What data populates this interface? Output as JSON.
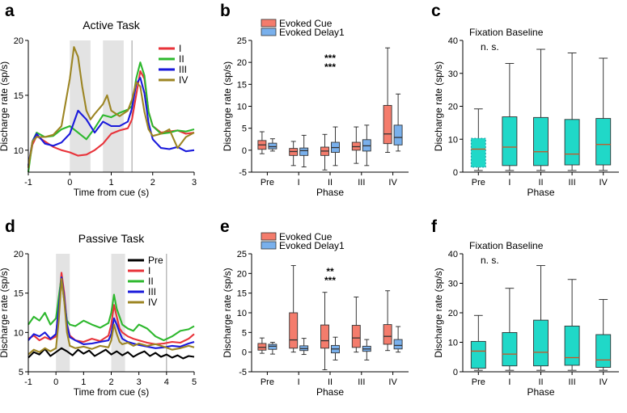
{
  "chart_data": [
    {
      "id": "a",
      "panel_label": "a",
      "type": "line",
      "title": "Active Task",
      "xlabel": "Time from cue (s)",
      "ylabel": "Discharge rate (sp/s)",
      "xlim": [
        -1,
        3
      ],
      "ylim": [
        8,
        20
      ],
      "xticks": [
        "-1",
        "0",
        "1",
        "2",
        "3"
      ],
      "yticks": [
        "10",
        "15",
        "20"
      ],
      "shaded": [
        [
          0,
          0.5
        ],
        [
          0.8,
          1.3
        ]
      ],
      "vline": 1.5,
      "series": [
        {
          "name": "I",
          "color": "#e8333a",
          "x": [
            -1,
            -0.9,
            -0.8,
            -0.6,
            -0.4,
            -0.2,
            0,
            0.2,
            0.4,
            0.6,
            0.8,
            1.0,
            1.2,
            1.4,
            1.5,
            1.6,
            1.7,
            1.8,
            1.9,
            2.0,
            2.2,
            2.4,
            2.6,
            2.8,
            3.0
          ],
          "y": [
            8.4,
            10.5,
            11.3,
            10.8,
            10.3,
            10.0,
            9.8,
            9.5,
            9.6,
            10.0,
            10.6,
            11.5,
            11.8,
            12.0,
            12.8,
            15.0,
            17.2,
            16.5,
            13.5,
            12.2,
            11.6,
            11.7,
            11.8,
            11.5,
            11.6
          ]
        },
        {
          "name": "II",
          "color": "#2eb82e",
          "x": [
            -1,
            -0.9,
            -0.8,
            -0.6,
            -0.4,
            -0.2,
            0,
            0.2,
            0.4,
            0.6,
            0.8,
            1.0,
            1.2,
            1.4,
            1.5,
            1.6,
            1.7,
            1.8,
            1.9,
            2.0,
            2.2,
            2.4,
            2.6,
            2.8,
            3.0
          ],
          "y": [
            8.0,
            10.8,
            11.6,
            11.2,
            11.3,
            11.9,
            12.2,
            11.6,
            11.0,
            12.0,
            13.2,
            13.0,
            13.4,
            13.7,
            14.0,
            16.5,
            18.0,
            16.8,
            13.5,
            12.2,
            11.5,
            11.6,
            11.8,
            11.7,
            11.9
          ]
        },
        {
          "name": "III",
          "color": "#1a1adb",
          "x": [
            -1,
            -0.9,
            -0.8,
            -0.6,
            -0.4,
            -0.2,
            0,
            0.2,
            0.4,
            0.6,
            0.8,
            1.0,
            1.2,
            1.4,
            1.5,
            1.6,
            1.7,
            1.8,
            1.9,
            2.0,
            2.2,
            2.4,
            2.6,
            2.8,
            3.0
          ],
          "y": [
            8.6,
            10.8,
            11.5,
            10.6,
            10.4,
            10.7,
            11.5,
            13.6,
            12.8,
            11.6,
            12.6,
            12.2,
            12.2,
            12.6,
            13.8,
            16.0,
            16.6,
            15.2,
            12.5,
            11.0,
            10.2,
            10.1,
            10.3,
            9.9,
            10.0
          ]
        },
        {
          "name": "IV",
          "color": "#9c8523",
          "x": [
            -1,
            -0.9,
            -0.8,
            -0.6,
            -0.4,
            -0.2,
            0,
            0.1,
            0.2,
            0.3,
            0.4,
            0.5,
            0.6,
            0.8,
            0.9,
            1.0,
            1.2,
            1.4,
            1.5,
            1.6,
            1.7,
            1.8,
            1.9,
            2.0,
            2.2,
            2.4,
            2.6,
            2.8,
            3.0
          ],
          "y": [
            8.4,
            10.8,
            11.2,
            11.2,
            11.4,
            12.2,
            16.5,
            19.4,
            18.5,
            15.8,
            13.6,
            12.8,
            13.3,
            14.2,
            15.0,
            13.6,
            13.1,
            13.6,
            14.6,
            16.2,
            15.8,
            13.5,
            11.9,
            11.3,
            11.5,
            11.9,
            10.2,
            11.2,
            11.6
          ]
        }
      ]
    },
    {
      "id": "b",
      "panel_label": "b",
      "type": "box",
      "title": "",
      "xlabel": "Phase",
      "ylabel": "Discharge rate (sp/s)",
      "ylim": [
        -5,
        25
      ],
      "yticks": [
        "-5",
        "0",
        "5",
        "10",
        "15",
        "20",
        "25"
      ],
      "categories": [
        "Pre",
        "I",
        "II",
        "III",
        "IV"
      ],
      "legend": [
        "Evoked Cue",
        "Evoked Delay1"
      ],
      "significance": {
        "category": "II",
        "marks": [
          {
            "text": "***",
            "color": "#e24b2a"
          },
          {
            "text": "***",
            "color": "#2a69c4"
          }
        ]
      },
      "series": [
        {
          "name": "Evoked Cue",
          "color": "#f47c6c",
          "stats": [
            {
              "min": -0.8,
              "q1": 0.2,
              "med": 1.2,
              "q3": 2.2,
              "max": 4.2
            },
            {
              "min": -3.5,
              "q1": -1.2,
              "med": -0.3,
              "q3": 0.4,
              "max": 2.0
            },
            {
              "min": -4.5,
              "q1": -1.2,
              "med": -0.2,
              "q3": 0.7,
              "max": 3.6
            },
            {
              "min": -3.0,
              "q1": 0.0,
              "med": 0.8,
              "q3": 1.8,
              "max": 5.3
            },
            {
              "min": -0.5,
              "q1": 1.5,
              "med": 3.7,
              "q3": 10.2,
              "max": 23.3
            }
          ]
        },
        {
          "name": "Evoked Delay1",
          "color": "#79b0ec",
          "stats": [
            {
              "min": -0.2,
              "q1": 0.3,
              "med": 0.8,
              "q3": 1.6,
              "max": 2.6
            },
            {
              "min": -3.8,
              "q1": -1.2,
              "med": -0.1,
              "q3": 0.5,
              "max": 3.4
            },
            {
              "min": -3.5,
              "q1": -0.5,
              "med": 0.6,
              "q3": 1.8,
              "max": 5.3
            },
            {
              "min": -3.5,
              "q1": -0.2,
              "med": 1.0,
              "q3": 2.4,
              "max": 5.7
            },
            {
              "min": -0.2,
              "q1": 1.2,
              "med": 2.9,
              "q3": 5.7,
              "max": 12.8
            }
          ]
        }
      ]
    },
    {
      "id": "c",
      "panel_label": "c",
      "type": "box",
      "title": "Fixation Baseline",
      "xlabel": "Phase",
      "ylabel": "Discharge rate (sp/s)",
      "ylim": [
        0,
        40
      ],
      "yticks": [
        "0",
        "10",
        "20",
        "30",
        "40"
      ],
      "categories": [
        "Pre",
        "I",
        "II",
        "III",
        "IV"
      ],
      "annotation": {
        "text": "n. s.",
        "color": "#2a69c4"
      },
      "series": [
        {
          "name": "Fixation Baseline",
          "color": "#20d8c8",
          "stats": [
            {
              "min": 0.5,
              "q1": 1.5,
              "med": 7.0,
              "q3": 10.3,
              "max": 19.2,
              "dotted": true
            },
            {
              "min": 0.5,
              "q1": 2.0,
              "med": 7.6,
              "q3": 16.8,
              "max": 33.0
            },
            {
              "min": 0.5,
              "q1": 2.0,
              "med": 6.2,
              "q3": 16.6,
              "max": 37.3
            },
            {
              "min": 0.5,
              "q1": 2.2,
              "med": 5.5,
              "q3": 16.0,
              "max": 36.2
            },
            {
              "min": 0.5,
              "q1": 2.2,
              "med": 8.4,
              "q3": 16.3,
              "max": 34.6
            }
          ]
        }
      ]
    },
    {
      "id": "d",
      "panel_label": "d",
      "type": "line",
      "title": "Passive Task",
      "xlabel": "Time from cue (s)",
      "ylabel": "Discharge rate (sp/s)",
      "xlim": [
        -1,
        5
      ],
      "ylim": [
        5,
        20
      ],
      "xticks": [
        "-1",
        "0",
        "1",
        "2",
        "3",
        "4",
        "5"
      ],
      "yticks": [
        "5",
        "10",
        "15",
        "20"
      ],
      "shaded": [
        [
          0,
          0.5
        ],
        [
          2,
          2.5
        ]
      ],
      "vline": 4,
      "series": [
        {
          "name": "Pre",
          "color": "#000000",
          "x": [
            -1,
            -0.8,
            -0.6,
            -0.4,
            -0.2,
            0,
            0.2,
            0.4,
            0.6,
            0.8,
            1.0,
            1.2,
            1.4,
            1.6,
            1.8,
            2.0,
            2.2,
            2.4,
            2.6,
            2.8,
            3.0,
            3.2,
            3.4,
            3.6,
            3.8,
            4.0,
            4.2,
            4.4,
            4.6,
            4.8,
            5.0
          ],
          "y": [
            6.8,
            7.5,
            7.2,
            7.9,
            7.0,
            7.5,
            8.0,
            7.6,
            7.1,
            7.8,
            7.3,
            7.7,
            7.0,
            7.4,
            7.8,
            7.2,
            7.6,
            7.1,
            7.5,
            6.9,
            7.3,
            7.6,
            7.0,
            7.4,
            6.9,
            7.2,
            6.8,
            7.1,
            6.7,
            7.0,
            6.9
          ]
        },
        {
          "name": "I",
          "color": "#e8333a",
          "x": [
            -1,
            -0.8,
            -0.6,
            -0.4,
            -0.2,
            0,
            0.1,
            0.2,
            0.3,
            0.4,
            0.5,
            0.7,
            1.0,
            1.3,
            1.6,
            1.9,
            2.0,
            2.1,
            2.2,
            2.3,
            2.4,
            2.6,
            2.8,
            3.0,
            3.3,
            3.6,
            3.9,
            4.2,
            4.5,
            4.8,
            5.0
          ],
          "y": [
            9.2,
            9.6,
            9.0,
            9.4,
            9.1,
            9.5,
            13.5,
            17.6,
            15.0,
            11.0,
            9.6,
            9.0,
            8.8,
            9.2,
            8.9,
            9.6,
            11.0,
            13.5,
            12.0,
            10.5,
            10.0,
            9.5,
            9.2,
            9.0,
            8.7,
            8.5,
            8.6,
            8.8,
            8.7,
            9.2,
            9.8
          ]
        },
        {
          "name": "II",
          "color": "#2eb82e",
          "x": [
            -1,
            -0.8,
            -0.6,
            -0.4,
            -0.2,
            0,
            0.1,
            0.2,
            0.3,
            0.4,
            0.5,
            0.7,
            1.0,
            1.3,
            1.6,
            1.9,
            2.0,
            2.1,
            2.2,
            2.3,
            2.4,
            2.6,
            2.8,
            3.0,
            3.3,
            3.6,
            3.9,
            4.2,
            4.5,
            4.8,
            5.0
          ],
          "y": [
            11.0,
            12.0,
            11.5,
            12.5,
            11.0,
            11.8,
            14.5,
            17.0,
            14.0,
            11.5,
            11.0,
            10.8,
            11.5,
            11.0,
            10.6,
            11.2,
            12.5,
            14.8,
            13.0,
            12.0,
            11.0,
            10.5,
            10.2,
            11.0,
            10.5,
            9.5,
            9.0,
            9.5,
            10.2,
            10.4,
            10.8
          ]
        },
        {
          "name": "III",
          "color": "#1a1adb",
          "x": [
            -1,
            -0.8,
            -0.6,
            -0.4,
            -0.2,
            0,
            0.1,
            0.2,
            0.3,
            0.4,
            0.5,
            0.7,
            1.0,
            1.3,
            1.6,
            1.9,
            2.0,
            2.1,
            2.2,
            2.3,
            2.4,
            2.6,
            2.8,
            3.0,
            3.3,
            3.6,
            3.9,
            4.2,
            4.5,
            4.8,
            5.0
          ],
          "y": [
            9.0,
            9.8,
            9.5,
            10.0,
            9.2,
            9.8,
            13.0,
            17.0,
            14.5,
            11.0,
            9.4,
            9.0,
            8.5,
            8.6,
            8.8,
            9.0,
            9.8,
            11.8,
            11.0,
            10.0,
            9.2,
            8.8,
            8.6,
            8.4,
            8.2,
            8.0,
            8.1,
            8.3,
            8.2,
            8.6,
            8.8
          ]
        },
        {
          "name": "IV",
          "color": "#9c8523",
          "x": [
            -1,
            -0.8,
            -0.6,
            -0.4,
            -0.2,
            0,
            0.1,
            0.2,
            0.3,
            0.4,
            0.5,
            0.7,
            1.0,
            1.3,
            1.6,
            1.9,
            2.0,
            2.1,
            2.2,
            2.3,
            2.4,
            2.6,
            2.8,
            3.0,
            3.3,
            3.6,
            3.9,
            4.2,
            4.5,
            4.8,
            5.0
          ],
          "y": [
            7.2,
            7.8,
            7.5,
            8.0,
            7.6,
            8.0,
            11.5,
            16.8,
            14.0,
            10.0,
            8.3,
            8.0,
            8.2,
            7.9,
            8.3,
            8.1,
            9.0,
            11.0,
            9.8,
            8.8,
            8.5,
            8.7,
            8.3,
            8.6,
            8.3,
            8.5,
            8.2,
            7.8,
            8.0,
            8.3,
            8.1
          ]
        }
      ]
    },
    {
      "id": "e",
      "panel_label": "e",
      "type": "box",
      "title": "",
      "xlabel": "Phase",
      "ylabel": "Discharge rate (sp/s)",
      "ylim": [
        -5,
        25
      ],
      "yticks": [
        "-5",
        "0",
        "5",
        "10",
        "15",
        "20",
        "25"
      ],
      "categories": [
        "Pre",
        "I",
        "II",
        "III",
        "IV"
      ],
      "legend": [
        "Evoked Cue",
        "Evoked Delay1"
      ],
      "significance": {
        "category": "II",
        "marks": [
          {
            "text": "**",
            "color": "#e24b2a"
          },
          {
            "text": "***",
            "color": "#2a69c4"
          }
        ]
      },
      "series": [
        {
          "name": "Evoked Cue",
          "color": "#f47c6c",
          "stats": [
            {
              "min": -0.3,
              "q1": 0.5,
              "med": 1.2,
              "q3": 2.2,
              "max": 3.6
            },
            {
              "min": 0.0,
              "q1": 1.0,
              "med": 3.1,
              "q3": 10.0,
              "max": 22.0
            },
            {
              "min": -4.5,
              "q1": 1.0,
              "med": 2.9,
              "q3": 6.9,
              "max": 15.2
            },
            {
              "min": 0.0,
              "q1": 1.2,
              "med": 3.6,
              "q3": 6.8,
              "max": 14.0
            },
            {
              "min": 0.4,
              "q1": 2.0,
              "med": 4.0,
              "q3": 7.0,
              "max": 15.6
            }
          ]
        },
        {
          "name": "Evoked Delay1",
          "color": "#79b0ec",
          "stats": [
            {
              "min": -0.5,
              "q1": 0.7,
              "med": 1.5,
              "q3": 2.0,
              "max": 2.5
            },
            {
              "min": -0.6,
              "q1": 0.4,
              "med": 0.9,
              "q3": 1.6,
              "max": 3.5
            },
            {
              "min": -2.0,
              "q1": -0.2,
              "med": 0.8,
              "q3": 1.7,
              "max": 3.8
            },
            {
              "min": -2.0,
              "q1": 0.2,
              "med": 0.8,
              "q3": 1.5,
              "max": 3.2
            },
            {
              "min": 0.0,
              "q1": 0.8,
              "med": 1.7,
              "q3": 3.2,
              "max": 6.5
            }
          ]
        }
      ]
    },
    {
      "id": "f",
      "panel_label": "f",
      "type": "box",
      "title": "Fixation Baseline",
      "xlabel": "Phase",
      "ylabel": "Discharge rate (sp/s)",
      "ylim": [
        0,
        40
      ],
      "yticks": [
        "0",
        "10",
        "20",
        "30",
        "40"
      ],
      "categories": [
        "Pre",
        "I",
        "II",
        "III",
        "IV"
      ],
      "annotation": {
        "text": "n. s.",
        "color": "#2a69c4"
      },
      "series": [
        {
          "name": "Fixation Baseline",
          "color": "#20d8c8",
          "stats": [
            {
              "min": 0.5,
              "q1": 1.2,
              "med": 7.0,
              "q3": 10.3,
              "max": 19.1
            },
            {
              "min": 0.5,
              "q1": 2.0,
              "med": 6.0,
              "q3": 13.3,
              "max": 28.3
            },
            {
              "min": 0.5,
              "q1": 2.0,
              "med": 6.6,
              "q3": 17.5,
              "max": 36.0
            },
            {
              "min": 0.5,
              "q1": 2.2,
              "med": 4.8,
              "q3": 15.5,
              "max": 31.3
            },
            {
              "min": 0.5,
              "q1": 1.5,
              "med": 4.0,
              "q3": 12.6,
              "max": 24.5
            }
          ]
        }
      ]
    }
  ]
}
